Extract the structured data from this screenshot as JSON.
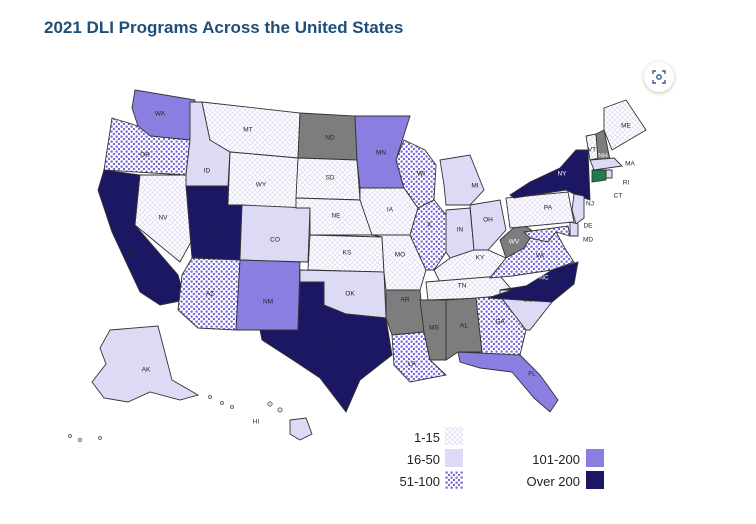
{
  "title": "2021 DLI Programs Across the United States",
  "focus_button": {
    "icon": "focus-mode-icon"
  },
  "colors": {
    "cat_1_15": "#f7f6fd",
    "cat_16_50": "#dcdaf4",
    "cat_51_100": "#c6c2ef",
    "cat_101_200": "#8a7fe0",
    "cat_over_200": "#1c1763",
    "cat_none": "#7d7d7d",
    "dot_51_100": "#6f63d6",
    "ct_highlight": "#1e7d4a"
  },
  "legend": {
    "items": [
      {
        "key": "cat_1_15",
        "label": "1-15"
      },
      {
        "key": "cat_16_50",
        "label": "16-50"
      },
      {
        "key": "cat_51_100",
        "label": "51-100"
      },
      {
        "key": "cat_101_200",
        "label": "101-200"
      },
      {
        "key": "cat_over_200",
        "label": "Over 200"
      }
    ]
  },
  "states": [
    {
      "abbr": "WA",
      "category": "cat_101_200"
    },
    {
      "abbr": "OR",
      "category": "cat_51_100"
    },
    {
      "abbr": "CA",
      "category": "cat_over_200"
    },
    {
      "abbr": "NV",
      "category": "cat_1_15"
    },
    {
      "abbr": "ID",
      "category": "cat_16_50"
    },
    {
      "abbr": "MT",
      "category": "cat_1_15"
    },
    {
      "abbr": "WY",
      "category": "cat_1_15"
    },
    {
      "abbr": "UT",
      "category": "cat_over_200"
    },
    {
      "abbr": "AZ",
      "category": "cat_51_100"
    },
    {
      "abbr": "CO",
      "category": "cat_16_50"
    },
    {
      "abbr": "NM",
      "category": "cat_101_200"
    },
    {
      "abbr": "ND",
      "category": "cat_none"
    },
    {
      "abbr": "SD",
      "category": "cat_1_15"
    },
    {
      "abbr": "NE",
      "category": "cat_1_15"
    },
    {
      "abbr": "KS",
      "category": "cat_1_15"
    },
    {
      "abbr": "OK",
      "category": "cat_16_50"
    },
    {
      "abbr": "TX",
      "category": "cat_over_200"
    },
    {
      "abbr": "MN",
      "category": "cat_101_200"
    },
    {
      "abbr": "IA",
      "category": "cat_1_15"
    },
    {
      "abbr": "MO",
      "category": "cat_1_15"
    },
    {
      "abbr": "AR",
      "category": "cat_none"
    },
    {
      "abbr": "LA",
      "category": "cat_51_100"
    },
    {
      "abbr": "WI",
      "category": "cat_51_100"
    },
    {
      "abbr": "IL",
      "category": "cat_51_100"
    },
    {
      "abbr": "MI",
      "category": "cat_16_50"
    },
    {
      "abbr": "IN",
      "category": "cat_16_50"
    },
    {
      "abbr": "OH",
      "category": "cat_16_50"
    },
    {
      "abbr": "KY",
      "category": "cat_1_15"
    },
    {
      "abbr": "TN",
      "category": "cat_1_15"
    },
    {
      "abbr": "MS",
      "category": "cat_none"
    },
    {
      "abbr": "AL",
      "category": "cat_none"
    },
    {
      "abbr": "GA",
      "category": "cat_51_100"
    },
    {
      "abbr": "FL",
      "category": "cat_101_200"
    },
    {
      "abbr": "SC",
      "category": "cat_16_50"
    },
    {
      "abbr": "NC",
      "category": "cat_over_200"
    },
    {
      "abbr": "VA",
      "category": "cat_51_100"
    },
    {
      "abbr": "WV",
      "category": "cat_none"
    },
    {
      "abbr": "PA",
      "category": "cat_1_15"
    },
    {
      "abbr": "NY",
      "category": "cat_over_200"
    },
    {
      "abbr": "VT",
      "category": "cat_1_15"
    },
    {
      "abbr": "NH",
      "category": "cat_none"
    },
    {
      "abbr": "ME",
      "category": "cat_1_15"
    },
    {
      "abbr": "MA",
      "category": "cat_16_50"
    },
    {
      "abbr": "RI",
      "category": "cat_16_50"
    },
    {
      "abbr": "CT",
      "category": "ct_highlight"
    },
    {
      "abbr": "NJ",
      "category": "cat_16_50"
    },
    {
      "abbr": "DE",
      "category": "cat_16_50"
    },
    {
      "abbr": "MD",
      "category": "cat_51_100"
    },
    {
      "abbr": "AK",
      "category": "cat_16_50"
    },
    {
      "abbr": "HI",
      "category": "cat_16_50"
    }
  ]
}
